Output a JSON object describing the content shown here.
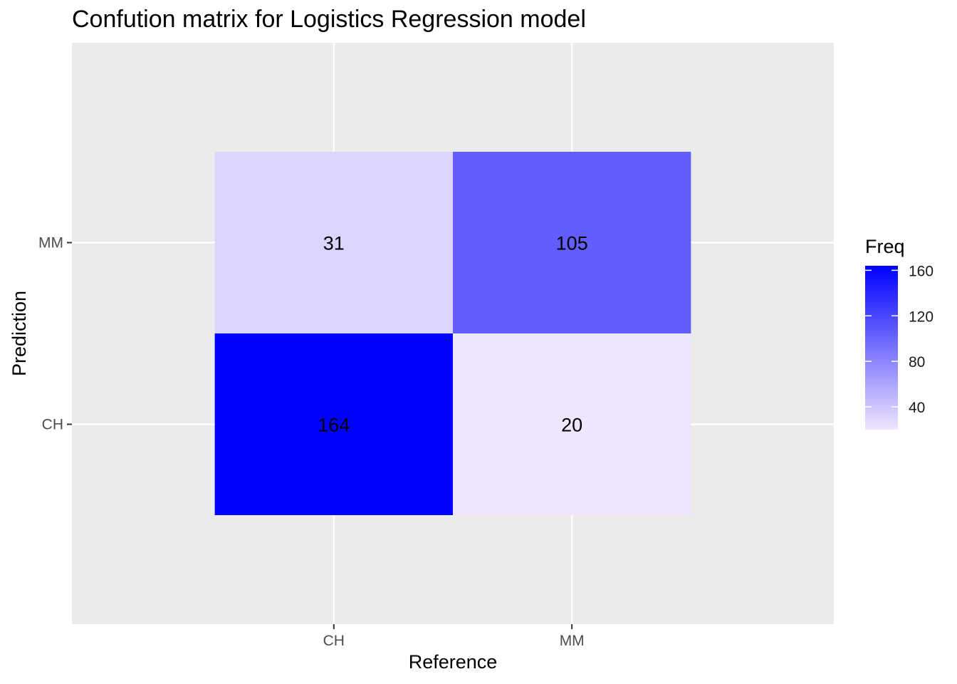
{
  "chart_data": {
    "type": "heatmap",
    "title": "Confution matrix for Logistics Regression model",
    "xlabel": "Reference",
    "ylabel": "Prediction",
    "x_categories": [
      "CH",
      "MM"
    ],
    "y_categories": [
      "CH",
      "MM"
    ],
    "cells": [
      {
        "reference": "CH",
        "prediction": "MM",
        "value": 31
      },
      {
        "reference": "MM",
        "prediction": "MM",
        "value": 105
      },
      {
        "reference": "CH",
        "prediction": "CH",
        "value": 164
      },
      {
        "reference": "MM",
        "prediction": "CH",
        "value": 20
      }
    ],
    "legend": {
      "title": "Freq",
      "ticks": [
        40,
        80,
        120,
        160
      ],
      "range": [
        20,
        164
      ],
      "low_color": "#efe5fd",
      "high_color": "#0000ff"
    },
    "panel_background": "#ebebeb",
    "grid": true,
    "legend_position": "right"
  }
}
